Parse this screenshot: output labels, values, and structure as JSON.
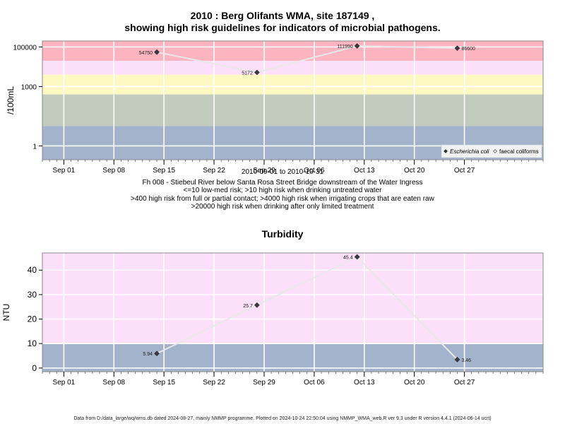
{
  "chart_data": [
    {
      "type": "scatter",
      "title_lines": [
        "2010 : Berg Olifants WMA, site 187149 ,",
        "showing high risk guidelines for indicators of microbial pathogens."
      ],
      "xlabel": "2010-09-01 to 2010-10-31",
      "ylabel": "/100mL",
      "y_scale": "log10",
      "ylim": [
        0.2,
        200000
      ],
      "xlim": [
        "2010-08-29",
        "2010-11-07"
      ],
      "x_tick_labels": [
        "Sep 01",
        "Sep 08",
        "Sep 15",
        "Sep 22",
        "Sep 29",
        "Oct 06",
        "Oct 13",
        "Oct 20",
        "Oct 27"
      ],
      "x_tick_dates": [
        "2010-09-01",
        "2010-09-08",
        "2010-09-15",
        "2010-09-22",
        "2010-09-29",
        "2010-10-06",
        "2010-10-13",
        "2010-10-20",
        "2010-10-27"
      ],
      "y_tick_labels": [
        "1",
        "1000",
        "100000"
      ],
      "y_tick_values": [
        1,
        1000,
        100000
      ],
      "bands": [
        {
          "from": 0.2,
          "to": 10,
          "color": "#a3b3cb"
        },
        {
          "from": 10,
          "to": 400,
          "color": "#c3cbbe"
        },
        {
          "from": 400,
          "to": 4000,
          "color": "#fef9c3"
        },
        {
          "from": 4000,
          "to": 20000,
          "color": "#fce0fa"
        },
        {
          "from": 20000,
          "to": 200000,
          "color": "#fdb4c1"
        }
      ],
      "series": [
        {
          "name": "Escherichia coli",
          "marker": "filled-diamond",
          "points": [
            {
              "x": "2010-09-14",
              "y": 54750,
              "label": "54750"
            },
            {
              "x": "2010-09-28",
              "y": 5172,
              "label": "5172"
            },
            {
              "x": "2010-10-12",
              "y": 111990,
              "label": "111990"
            },
            {
              "x": "2010-10-26",
              "y": 86600,
              "label": "86600"
            }
          ]
        },
        {
          "name": "faecal coliforms",
          "marker": "open-diamond",
          "points": []
        }
      ],
      "legend_position": "bottom-right",
      "grid": true,
      "captions": [
        "Fh 008 - Stiebeul River below Santa Rosa Street Bridge downstream of the Water Ingress",
        "<=10 low-med risk; >10 high risk when drinking untreated water",
        ">400 high risk from full or partial contact; >4000 high risk when irrigating crops that are eaten raw",
        ">20000 high risk when drinking after only limited treatment"
      ]
    },
    {
      "type": "scatter",
      "title": "Turbidity",
      "xlabel": "",
      "ylabel": "NTU",
      "y_scale": "linear",
      "ylim": [
        -1.5,
        47
      ],
      "xlim": [
        "2010-08-29",
        "2010-11-07"
      ],
      "x_tick_labels": [
        "Sep 01",
        "Sep 08",
        "Sep 15",
        "Sep 22",
        "Sep 29",
        "Oct 06",
        "Oct 13",
        "Oct 20",
        "Oct 27"
      ],
      "x_tick_dates": [
        "2010-09-01",
        "2010-09-08",
        "2010-09-15",
        "2010-09-22",
        "2010-09-29",
        "2010-10-06",
        "2010-10-13",
        "2010-10-20",
        "2010-10-27"
      ],
      "y_tick_labels": [
        "0",
        "10",
        "20",
        "30",
        "40"
      ],
      "y_tick_values": [
        0,
        10,
        20,
        30,
        40
      ],
      "bands": [
        {
          "from": -1.5,
          "to": 10,
          "color": "#a3b3cb"
        },
        {
          "from": 10,
          "to": 47,
          "color": "#fce0fa"
        }
      ],
      "series": [
        {
          "marker": "filled-diamond",
          "points": [
            {
              "x": "2010-09-14",
              "y": 5.94,
              "label": "5.94"
            },
            {
              "x": "2010-09-28",
              "y": 25.7,
              "label": "25.7"
            },
            {
              "x": "2010-10-12",
              "y": 45.4,
              "label": "45.4"
            },
            {
              "x": "2010-10-26",
              "y": 3.46,
              "label": "3.46"
            }
          ]
        }
      ],
      "grid": true
    }
  ],
  "footer": "Data from D:/data_large/wq/wms.db dated 2024-08-27, mainly NMMP programme. Plotted on 2024-10-24 22:50:04 using NMMP_WMA_web.R ver 9.3 under R version 4.4.1 (2024-06-14 ucrt)"
}
